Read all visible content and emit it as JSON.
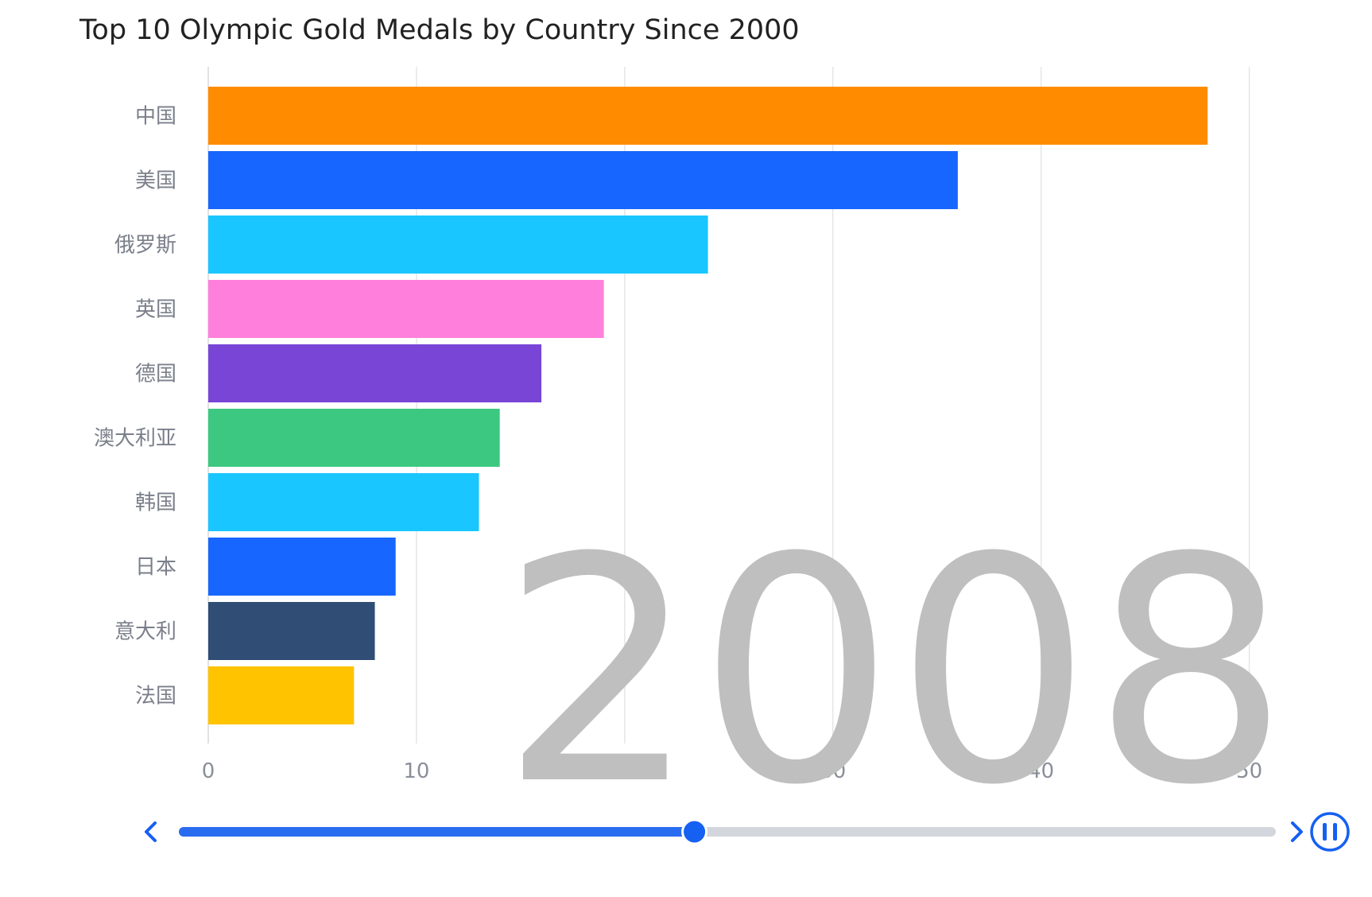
{
  "chart_data": {
    "type": "bar",
    "orientation": "horizontal",
    "title": "Top 10 Olympic Gold Medals by Country Since 2000",
    "categories": [
      "中国",
      "美国",
      "俄罗斯",
      "英国",
      "德国",
      "澳大利亚",
      "韩国",
      "日本",
      "意大利",
      "法国"
    ],
    "values": [
      48,
      36,
      24,
      19,
      16,
      14,
      13,
      9,
      8,
      7
    ],
    "colors": [
      "#ff8c00",
      "#1766ff",
      "#1ac6ff",
      "#ff7fdc",
      "#7845d6",
      "#3cc880",
      "#1ac6ff",
      "#1766ff",
      "#2f4d75",
      "#ffc300"
    ],
    "xlim": [
      0,
      52
    ],
    "x_ticks": [
      0,
      10,
      20,
      30,
      40,
      50
    ],
    "grid": true,
    "current_year": "2008"
  },
  "timeline": {
    "progress": 0.47,
    "prev_icon": "chevron-left-icon",
    "next_icon": "chevron-right-icon",
    "play_icon": "pause-icon",
    "accent": "#1660f2"
  }
}
